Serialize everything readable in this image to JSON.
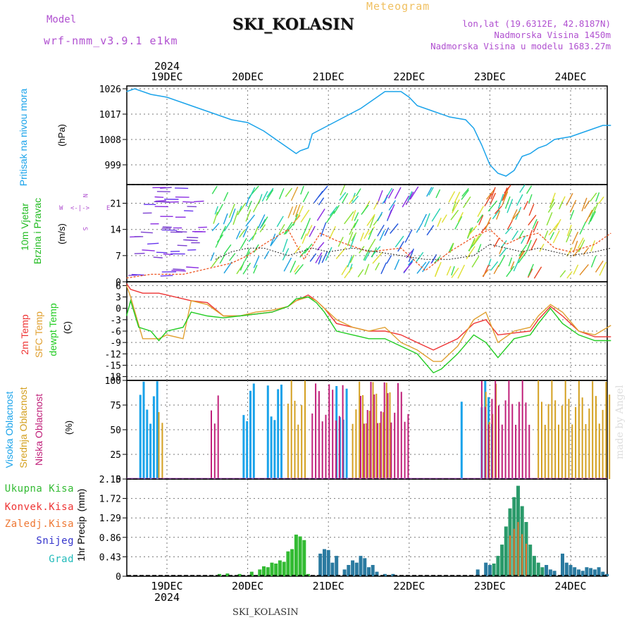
{
  "header": {
    "title": "SKI_KOLASIN",
    "meteogram_label": "Meteogram",
    "model_heading": "Model",
    "model_version": "wrf-nmm_v3.9.1 e1km",
    "lonlat": "lon,lat (19.6312E, 42.8187N)",
    "elevation": "Nadmorska Visina 1450m",
    "model_elevation": "Nadmorska Visina u modelu 1683.27m",
    "year_top": "2024",
    "year_bottom": "2024",
    "footer": "SKI_KOLASIN",
    "credit": "made by Angel"
  },
  "colors": {
    "pressure": "#1aa3ea",
    "wind_label": "#22bb22",
    "temp2m": "#ee3333",
    "sfc": "#e0a030",
    "dewpt": "#22cc22",
    "high_cloud": "#1aa3ea",
    "mid_cloud": "#d4a020",
    "low_cloud": "#c0207a",
    "total_precip": "#33bb33",
    "convective": "#ee3333",
    "frozen": "#ee7733",
    "snow": "#3333cc",
    "hail": "#22bbbb",
    "purple": "#b050d0"
  },
  "chart_data": [
    {
      "type": "line",
      "panel": "pressure",
      "x_categories": [
        "19DEC",
        "20DEC",
        "21DEC",
        "22DEC",
        "23DEC",
        "24DEC"
      ],
      "ylabel_name": "Pritisak na nivou mora",
      "ylabel_unit": "(hPa)",
      "yticks": [
        "1026",
        "1017",
        "1008",
        "999"
      ],
      "ylim": [
        992,
        1027
      ],
      "series": [
        {
          "x": [
            -0.5,
            -0.4,
            -0.2,
            0,
            0.2,
            0.4,
            0.6,
            0.8,
            1,
            1.2,
            1.4,
            1.6,
            1.65,
            1.75,
            1.8,
            2,
            2.2,
            2.4,
            2.6,
            2.7,
            2.9,
            3.0,
            3.1,
            3.3,
            3.5,
            3.7,
            3.8,
            3.9,
            4.0,
            4.1,
            4.2,
            4.3,
            4.4,
            4.5,
            4.6,
            4.7,
            4.8,
            5.0,
            5.2,
            5.4,
            5.5
          ],
          "values": [
            1025,
            1026,
            1024,
            1023,
            1021,
            1019,
            1017,
            1015,
            1014,
            1011,
            1007,
            1003,
            1004,
            1005,
            1010,
            1013,
            1016,
            1019,
            1023,
            1025,
            1025,
            1023,
            1020,
            1018,
            1016,
            1015,
            1012,
            1006,
            999,
            996,
            995,
            997,
            1002,
            1003,
            1005,
            1006,
            1008,
            1009,
            1011,
            1013,
            1013
          ]
        }
      ],
      "grid": true
    },
    {
      "type": "line",
      "panel": "wind",
      "ylabel_name": "10m Vjetar Brzina i Pravac",
      "ylabel_unit": "(m/s)",
      "yticks": [
        "21",
        "14",
        "7",
        "0"
      ],
      "ylim": [
        0,
        26
      ],
      "compass_labels": [
        "W",
        "E",
        "N",
        "S",
        "<",
        "-",
        "|",
        "-",
        ">"
      ],
      "series": [
        {
          "x": [
            -0.5,
            -0.2,
            0.2,
            0.4,
            0.6,
            0.8,
            1.0,
            1.2,
            1.5,
            1.7,
            1.9,
            2.1,
            2.5,
            2.9,
            3.2,
            3.5,
            3.8,
            4.0,
            4.2,
            4.4,
            4.6,
            4.8,
            5.0,
            5.3,
            5.5
          ],
          "values": [
            1,
            2,
            2,
            3,
            4,
            5,
            7,
            10,
            14,
            6,
            13,
            11,
            8,
            9,
            3,
            8,
            12,
            14,
            10,
            12,
            13,
            9,
            8,
            10,
            13
          ]
        },
        {
          "x": [
            0.6,
            0.8,
            1.0,
            1.2,
            1.5,
            1.8,
            2.0,
            2.3,
            2.6,
            2.9,
            3.2,
            3.5,
            3.8,
            4.0,
            4.2,
            4.4,
            4.6,
            4.8,
            5.0,
            5.3,
            5.5
          ],
          "values": [
            6,
            8,
            9,
            9,
            7,
            9,
            8,
            9,
            8,
            7,
            6,
            6,
            7,
            10,
            9,
            8,
            9,
            8,
            7,
            8,
            9
          ]
        }
      ],
      "grid": true
    },
    {
      "type": "line",
      "panel": "temperature",
      "ylabel_name": "2m Temp SFC Temp dewpt Temp",
      "ylabel_unit": "(C)",
      "yticks": [
        "6",
        "3",
        "0",
        "-3",
        "-6",
        "-9",
        "-12",
        "-15",
        "-18"
      ],
      "ylim": [
        -19,
        7
      ],
      "series": [
        {
          "name": "2m Temp",
          "x": [
            -0.5,
            -0.45,
            -0.3,
            -0.1,
            0,
            0.2,
            0.3,
            0.5,
            0.7,
            0.9,
            1.1,
            1.3,
            1.5,
            1.6,
            1.75,
            1.85,
            1.95,
            2.1,
            2.3,
            2.5,
            2.7,
            2.9,
            3.1,
            3.3,
            3.4,
            3.6,
            3.8,
            3.95,
            4.1,
            4.3,
            4.5,
            4.6,
            4.75,
            4.9,
            5.1,
            5.3,
            5.5
          ],
          "values": [
            6.5,
            5,
            4,
            4,
            3.5,
            2.5,
            2,
            1.5,
            -2,
            -2,
            -1.5,
            -1,
            0.5,
            2,
            3.5,
            2,
            0,
            -4,
            -5,
            -6,
            -6,
            -7,
            -9,
            -11,
            -10,
            -8,
            -4,
            -3,
            -7,
            -6.5,
            -6,
            -3,
            0.5,
            -2,
            -6,
            -7.5,
            -7.5
          ]
        },
        {
          "name": "SFC Temp",
          "x": [
            -0.5,
            -0.45,
            -0.3,
            -0.1,
            0,
            0.2,
            0.3,
            0.5,
            0.7,
            0.9,
            1.1,
            1.3,
            1.5,
            1.6,
            1.75,
            1.85,
            1.95,
            2.1,
            2.3,
            2.5,
            2.7,
            2.9,
            3.1,
            3.3,
            3.4,
            3.6,
            3.8,
            3.95,
            4.1,
            4.3,
            4.5,
            4.6,
            4.75,
            4.9,
            5.1,
            5.3,
            5.5
          ],
          "values": [
            6,
            3,
            -8,
            -8,
            -7,
            -8,
            2,
            1,
            -2,
            -2,
            -1,
            -0.5,
            0.5,
            2,
            3,
            2,
            0,
            -3,
            -5,
            -6,
            -5,
            -9,
            -11,
            -14,
            -14,
            -10,
            -3,
            -1,
            -9,
            -6,
            -5,
            -2,
            1,
            -1,
            -6,
            -7,
            -4.5
          ]
        },
        {
          "name": "dewpt Temp",
          "x": [
            -0.5,
            -0.45,
            -0.35,
            -0.2,
            -0.1,
            0,
            0.2,
            0.3,
            0.5,
            0.7,
            0.9,
            1.1,
            1.3,
            1.5,
            1.6,
            1.75,
            1.85,
            1.95,
            2.1,
            2.3,
            2.5,
            2.7,
            2.9,
            3.1,
            3.3,
            3.4,
            3.6,
            3.8,
            3.95,
            4.1,
            4.3,
            4.5,
            4.6,
            4.75,
            4.9,
            5.1,
            5.3,
            5.5
          ],
          "values": [
            -2,
            2,
            -5,
            -6,
            -8.5,
            -6,
            -5,
            -1,
            -2,
            -2.5,
            -2,
            -1.5,
            -1,
            0.5,
            2.5,
            3,
            1.5,
            -1,
            -6,
            -7,
            -8,
            -8,
            -10,
            -12,
            -17,
            -16,
            -12,
            -7,
            -9,
            -13,
            -8,
            -7,
            -4,
            0,
            -4,
            -7,
            -8.5,
            -8.5
          ]
        }
      ],
      "grid": true
    },
    {
      "type": "bar",
      "panel": "clouds",
      "ylabel_name": "Visoka Oblacnost Srednja Oblacnost Niska Oblacnost",
      "ylabel_unit": "(%)",
      "yticks": [
        "100",
        "75",
        "50",
        "25",
        "0"
      ],
      "ylim": [
        0,
        100
      ],
      "series": [
        {
          "name": "Visoka Oblacnost",
          "x_day_fraction_ranges": [
            [
              -0.33,
              -0.12
            ],
            [
              0.95,
              1.1
            ],
            [
              1.25,
              1.45
            ],
            [
              2.1,
              2.25
            ],
            [
              3.65,
              3.67
            ],
            [
              3.9,
              4.05
            ]
          ],
          "value": 100
        },
        {
          "name": "Srednja Oblacnost",
          "x_day_fraction_ranges": [
            [
              -0.1,
              -0.03
            ],
            [
              1.5,
              1.75
            ],
            [
              2.3,
              2.8
            ],
            [
              3.95,
              4.1
            ],
            [
              4.6,
              5.5
            ]
          ],
          "value": 100
        },
        {
          "name": "Niska Oblacnost",
          "x_day_fraction_ranges": [
            [
              0.55,
              0.65
            ],
            [
              1.8,
              2.2
            ],
            [
              2.4,
              3.0
            ],
            [
              3.9,
              4.5
            ]
          ],
          "value": 100
        }
      ],
      "grid": true
    },
    {
      "type": "bar",
      "panel": "precip",
      "ylabel_name": "1hr Precip",
      "ylabel_unit": "(mm)",
      "yticks": [
        "2.15",
        "1.72",
        "1.29",
        "0.86",
        "0.43",
        "0"
      ],
      "ylim": [
        0,
        2.15
      ],
      "legend": [
        "Ukupna Kisa",
        "Konvek.Kisa",
        "Zaledj.Kisa",
        "Snijeg",
        "Grad"
      ],
      "x_bottom_labels": [
        "19DEC",
        "20DEC",
        "21DEC",
        "22DEC",
        "23DEC",
        "24DEC"
      ],
      "series": [
        {
          "name": "Ukupna Kisa",
          "x": [
            0.65,
            0.75,
            0.9,
            1.05,
            1.15,
            1.2,
            1.25,
            1.3,
            1.35,
            1.4,
            1.45,
            1.5,
            1.55,
            1.6,
            1.65,
            1.7,
            1.75,
            1.9,
            1.95,
            2.0,
            2.05,
            2.1,
            2.2,
            2.25,
            2.3,
            2.35,
            2.4,
            2.45,
            2.5,
            2.55,
            2.6,
            2.7,
            2.8,
            3.85,
            3.95,
            4.0,
            4.05,
            4.1,
            4.15,
            4.2,
            4.25,
            4.3,
            4.35,
            4.4,
            4.45,
            4.5,
            4.55,
            4.6,
            4.65,
            4.7,
            4.75,
            4.8,
            4.9,
            4.95,
            5.0,
            5.05,
            5.1,
            5.15,
            5.2,
            5.25,
            5.3,
            5.35,
            5.4,
            5.45
          ],
          "values": [
            0.05,
            0.06,
            0.05,
            0.1,
            0.15,
            0.22,
            0.2,
            0.3,
            0.28,
            0.35,
            0.32,
            0.55,
            0.6,
            0.92,
            0.88,
            0.8,
            0.05,
            0.5,
            0.6,
            0.58,
            0.3,
            0.45,
            0.15,
            0.25,
            0.35,
            0.3,
            0.45,
            0.4,
            0.2,
            0.25,
            0.1,
            0.05,
            0.05,
            0.15,
            0.3,
            0.25,
            0.28,
            0.45,
            0.7,
            1.1,
            1.5,
            1.75,
            2.0,
            1.55,
            1.2,
            0.7,
            0.45,
            0.3,
            0.2,
            0.25,
            0.15,
            0.12,
            0.5,
            0.3,
            0.25,
            0.2,
            0.15,
            0.12,
            0.2,
            0.18,
            0.15,
            0.2,
            0.1,
            0.05
          ]
        }
      ],
      "grid": true
    }
  ]
}
